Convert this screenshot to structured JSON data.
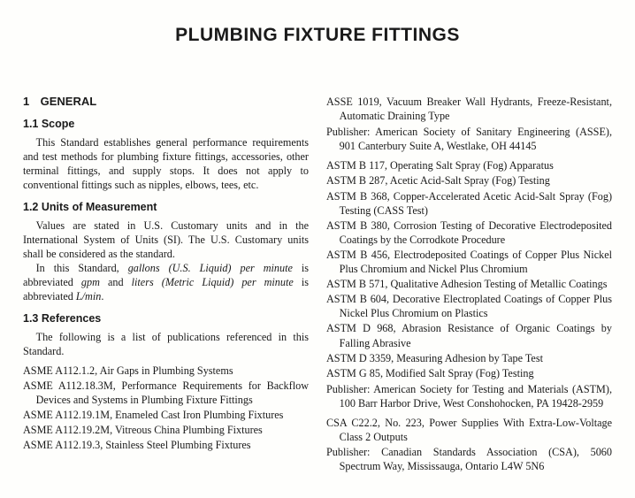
{
  "title": "PLUMBING FIXTURE FITTINGS",
  "background_color": "#fefefc",
  "text_color": "#1a1a1a",
  "title_fontsize": 21,
  "body_fontsize": 12.2,
  "heading_font": "Arial",
  "body_font": "Georgia",
  "left": {
    "section_num": "1",
    "section_label": "GENERAL",
    "scope": {
      "heading": "1.1 Scope",
      "body": "This Standard establishes general performance requirements and test methods for plumbing fixture fittings, accessories, other terminal fittings, and supply stops. It does not apply to conventional fittings such as nipples, elbows, tees, etc."
    },
    "units": {
      "heading": "1.2 Units of Measurement",
      "p1": "Values are stated in U.S. Customary units and in the International System of Units (SI). The U.S. Customary units shall be considered as the standard.",
      "p2a": "In this Standard, ",
      "p2b": "gallons (U.S. Liquid) per minute",
      "p2c": " is abbreviated ",
      "p2d": "gpm",
      "p2e": " and ",
      "p2f": "liters (Metric Liquid) per minute",
      "p2g": " is abbreviated ",
      "p2h": "L/min",
      "p2i": "."
    },
    "refs": {
      "heading": "1.3 References",
      "intro": "The following is a list of publications referenced in this Standard.",
      "items": [
        "ASME A112.1.2, Air Gaps in Plumbing Systems",
        "ASME A112.18.3M, Performance Requirements for Backflow Devices and Systems in Plumbing Fixture Fittings",
        "ASME A112.19.1M, Enameled Cast Iron Plumbing Fixtures",
        "ASME A112.19.2M, Vitreous China Plumbing Fixtures",
        "ASME A112.19.3, Stainless Steel Plumbing Fixtures"
      ]
    }
  },
  "right": {
    "asse": [
      "ASSE 1019, Vacuum Breaker Wall Hydrants, Freeze-Resistant, Automatic Draining Type"
    ],
    "asse_pub": "Publisher: American Society of Sanitary Engineering (ASSE), 901 Canterbury Suite A, Westlake, OH 44145",
    "astm": [
      "ASTM B 117, Operating Salt Spray (Fog) Apparatus",
      "ASTM B 287, Acetic Acid-Salt Spray (Fog) Testing",
      "ASTM B 368, Copper-Accelerated Acetic Acid-Salt Spray (Fog) Testing (CASS Test)",
      "ASTM B 380, Corrosion Testing of Decorative Electrodeposited Coatings by the Corrodkote Procedure",
      "ASTM B 456, Electrodeposited Coatings of Copper Plus Nickel Plus Chromium and Nickel Plus Chromium",
      "ASTM B 571, Qualitative Adhesion Testing of Metallic Coatings",
      "ASTM B 604, Decorative Electroplated Coatings of Copper Plus Nickel Plus Chromium on Plastics",
      "ASTM D 968, Abrasion Resistance of Organic Coatings by Falling Abrasive",
      "ASTM D 3359, Measuring Adhesion by Tape Test",
      "ASTM G 85, Modified Salt Spray (Fog) Testing"
    ],
    "astm_pub": "Publisher: American Society for Testing and Materials (ASTM), 100 Barr Harbor Drive, West Conshohocken, PA 19428-2959",
    "csa": [
      "CSA C22.2, No. 223, Power Supplies With Extra-Low-Voltage Class 2 Outputs"
    ],
    "csa_pub": "Publisher: Canadian Standards Association (CSA), 5060 Spectrum Way, Mississauga, Ontario L4W 5N6"
  }
}
